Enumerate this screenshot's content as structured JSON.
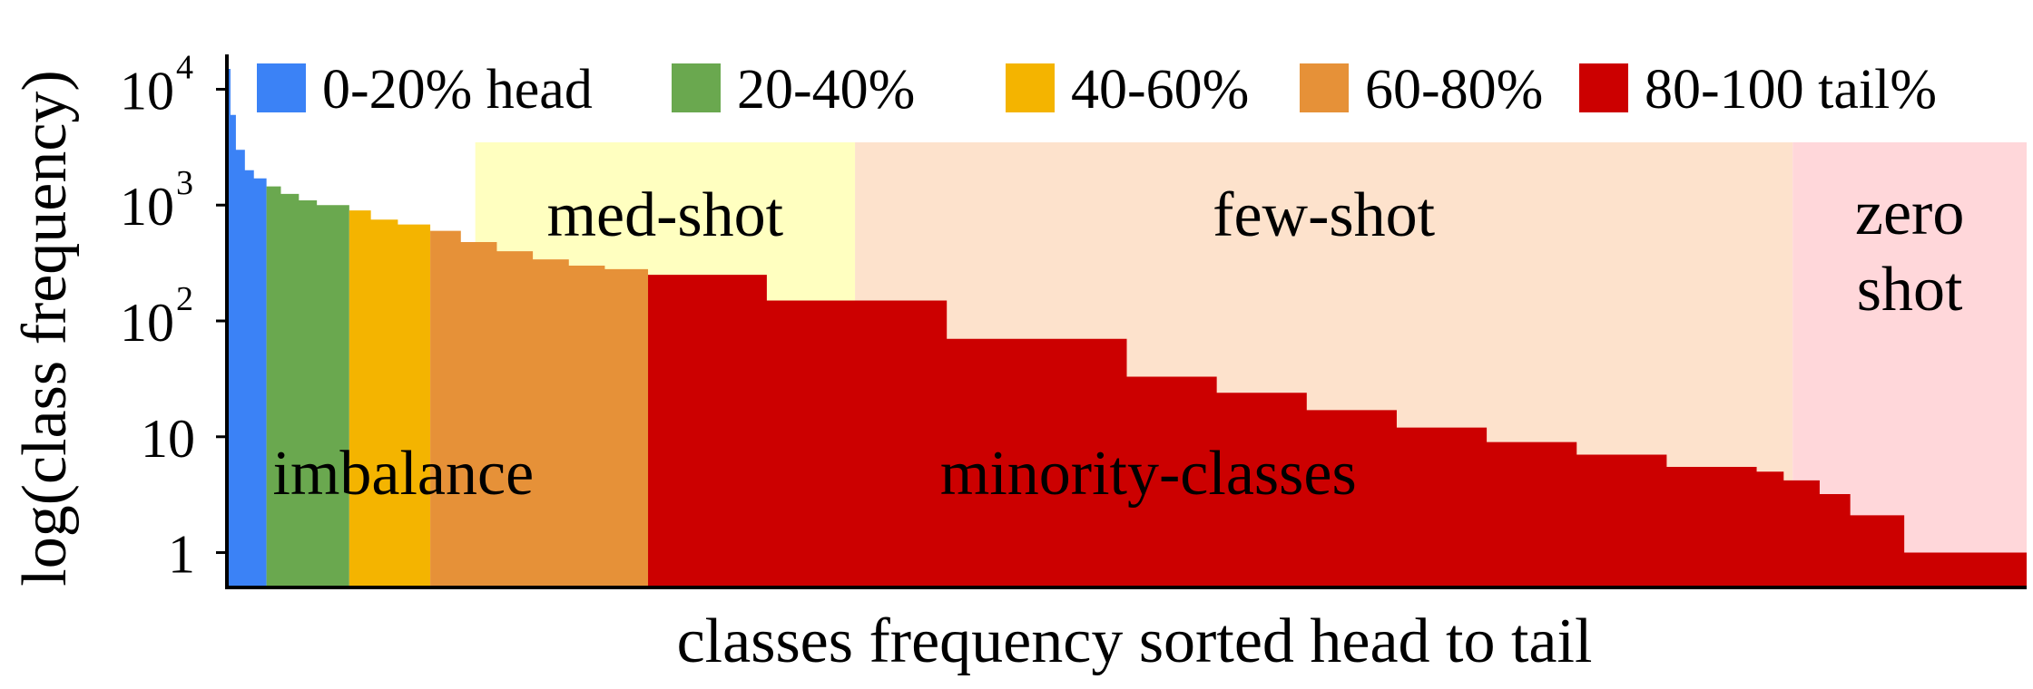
{
  "chart_data": {
    "type": "area",
    "title": "",
    "xlabel": "classes frequency sorted head to tail",
    "ylabel": "log(class frequency)",
    "yscale": "log",
    "ylim": [
      0.5,
      20000
    ],
    "xlim": [
      0,
      100
    ],
    "grid": false,
    "legend_position": "top",
    "ytick_labels": [
      {
        "value": 10000,
        "base": "10",
        "exp": "4"
      },
      {
        "value": 1000,
        "base": "10",
        "exp": "3"
      },
      {
        "value": 100,
        "base": "10",
        "exp": "2"
      },
      {
        "value": 10,
        "base": "10",
        "exp": ""
      },
      {
        "value": 1,
        "base": "1",
        "exp": ""
      }
    ],
    "series": [
      {
        "name": "0-20% head",
        "color": "#3b82f6",
        "x": [
          0,
          0.2,
          0.5,
          1.0,
          1.5,
          2.2
        ],
        "y": [
          15000,
          6000,
          3000,
          2000,
          1700,
          1450
        ]
      },
      {
        "name": "20-40%",
        "color": "#6aa84f",
        "x": [
          2.2,
          3,
          4,
          5,
          6.8
        ],
        "y": [
          1450,
          1250,
          1100,
          1000,
          900
        ]
      },
      {
        "name": "40-60%",
        "color": "#f4b400",
        "x": [
          6.8,
          8,
          9.5,
          11.3
        ],
        "y": [
          900,
          750,
          680,
          600
        ]
      },
      {
        "name": "60-80%",
        "color": "#e69138",
        "x": [
          11.3,
          13,
          15,
          17,
          19,
          21,
          23.4
        ],
        "y": [
          600,
          480,
          400,
          340,
          300,
          280,
          260
        ]
      },
      {
        "name": "80-100 tail%",
        "color": "#cc0000",
        "x": [
          23.4,
          30,
          40,
          50,
          55,
          60,
          65,
          70,
          75,
          80,
          85,
          86.5,
          88.5,
          90.2,
          93.2,
          96.6,
          100
        ],
        "y": [
          250,
          150,
          70,
          33,
          24,
          17,
          12,
          9,
          7,
          5.5,
          5,
          4.2,
          3.2,
          2.1,
          1.0,
          1.0,
          1.0
        ]
      }
    ],
    "regions": [
      {
        "label": "med-shot",
        "x": [
          13.8,
          34.9
        ],
        "color": "#ffffc0"
      },
      {
        "label": "few-shot",
        "x": [
          34.9,
          87.0
        ],
        "color": "#fde2cc"
      },
      {
        "label": "zero shot",
        "lines": [
          "zero",
          "shot"
        ],
        "x": [
          87.0,
          100
        ],
        "color": "#ffd7da"
      }
    ],
    "annotations": [
      {
        "text": "imbalance",
        "x": 9.8,
        "y": 5
      },
      {
        "text": "minority-classes",
        "x": 51.2,
        "y": 5
      }
    ]
  }
}
